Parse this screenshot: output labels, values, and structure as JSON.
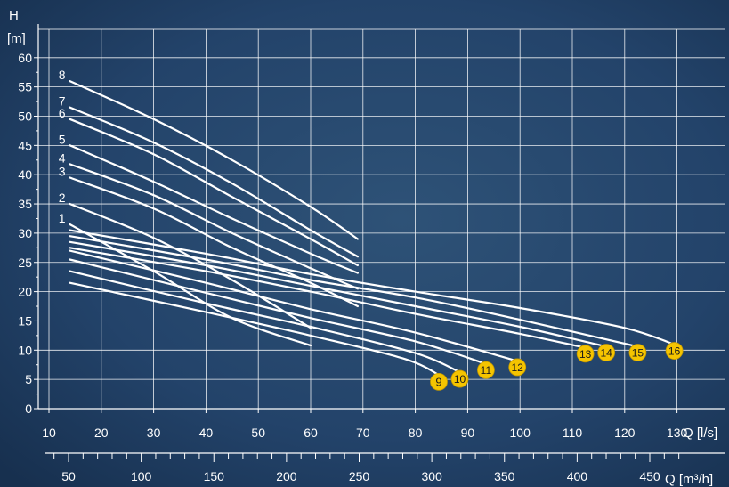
{
  "chart_data": {
    "type": "line",
    "y_axis": {
      "name": "H",
      "unit": "[m]",
      "range": [
        0,
        60
      ],
      "ticks": [
        0,
        5,
        10,
        15,
        20,
        25,
        30,
        35,
        40,
        45,
        50,
        55,
        60
      ]
    },
    "x_axis": {
      "label": "Q [l/s]",
      "range": [
        10,
        140
      ],
      "ticks": [
        10,
        20,
        30,
        40,
        50,
        60,
        70,
        80,
        90,
        100,
        110,
        120,
        130
      ]
    },
    "x2_axis": {
      "label": "Q [m³/h]",
      "ticks": [
        50,
        100,
        150,
        200,
        250,
        300,
        350,
        400,
        450
      ]
    },
    "grid": true,
    "series": [
      {
        "name": "1",
        "label_style": "plain",
        "points": [
          [
            14,
            31.5
          ],
          [
            30,
            23.5
          ],
          [
            45,
            15.5
          ],
          [
            60,
            10.8
          ]
        ]
      },
      {
        "name": "2",
        "label_style": "plain",
        "points": [
          [
            14,
            35
          ],
          [
            30,
            29.2
          ],
          [
            45,
            22
          ],
          [
            60,
            13.8
          ]
        ]
      },
      {
        "name": "3",
        "label_style": "plain",
        "points": [
          [
            14,
            39.5
          ],
          [
            30,
            34.2
          ],
          [
            45,
            27.5
          ],
          [
            60,
            21.5
          ],
          [
            69,
            17.5
          ]
        ]
      },
      {
        "name": "4",
        "label_style": "plain",
        "points": [
          [
            14,
            41.8
          ],
          [
            30,
            36.5
          ],
          [
            45,
            30
          ],
          [
            60,
            24
          ],
          [
            69,
            20.5
          ]
        ]
      },
      {
        "name": "5",
        "label_style": "plain",
        "points": [
          [
            14,
            45
          ],
          [
            30,
            38.8
          ],
          [
            45,
            32.5
          ],
          [
            60,
            26.5
          ],
          [
            69,
            23.2
          ]
        ]
      },
      {
        "name": "6",
        "label_style": "plain",
        "points": [
          [
            14,
            49.5
          ],
          [
            30,
            43.5
          ],
          [
            45,
            36.2
          ],
          [
            60,
            29
          ],
          [
            69,
            24.5
          ]
        ]
      },
      {
        "name": "7",
        "label_style": "plain",
        "points": [
          [
            14,
            51.5
          ],
          [
            30,
            45.5
          ],
          [
            45,
            38.5
          ],
          [
            60,
            30.5
          ],
          [
            69,
            26
          ]
        ]
      },
      {
        "name": "8",
        "label_style": "plain",
        "points": [
          [
            14,
            56
          ],
          [
            30,
            49.5
          ],
          [
            45,
            42.5
          ],
          [
            60,
            34.5
          ],
          [
            69,
            29
          ]
        ]
      },
      {
        "name": "9",
        "label_style": "badge",
        "points": [
          [
            14,
            21.5
          ],
          [
            40,
            16.5
          ],
          [
            60,
            12.5
          ],
          [
            78,
            8.5
          ],
          [
            85,
            5.5
          ]
        ]
      },
      {
        "name": "10",
        "label_style": "badge",
        "points": [
          [
            14,
            23.5
          ],
          [
            40,
            18
          ],
          [
            60,
            14
          ],
          [
            80,
            9.5
          ],
          [
            89,
            6
          ]
        ]
      },
      {
        "name": "11",
        "label_style": "badge",
        "points": [
          [
            14,
            25.5
          ],
          [
            40,
            19.8
          ],
          [
            60,
            15.5
          ],
          [
            80,
            11.5
          ],
          [
            94,
            7.5
          ]
        ]
      },
      {
        "name": "12",
        "label_style": "badge",
        "points": [
          [
            14,
            27
          ],
          [
            40,
            21.5
          ],
          [
            60,
            17
          ],
          [
            80,
            13
          ],
          [
            100,
            8
          ]
        ]
      },
      {
        "name": "13",
        "label_style": "badge",
        "points": [
          [
            14,
            27.5
          ],
          [
            40,
            23.5
          ],
          [
            60,
            20
          ],
          [
            80,
            16.2
          ],
          [
            100,
            12.8
          ],
          [
            113,
            10.3
          ]
        ]
      },
      {
        "name": "14",
        "label_style": "badge",
        "points": [
          [
            14,
            28.5
          ],
          [
            40,
            24.5
          ],
          [
            60,
            21
          ],
          [
            80,
            17.5
          ],
          [
            100,
            14
          ],
          [
            117,
            10.5
          ]
        ]
      },
      {
        "name": "15",
        "label_style": "badge",
        "points": [
          [
            14,
            29.5
          ],
          [
            40,
            25.5
          ],
          [
            60,
            22
          ],
          [
            80,
            19
          ],
          [
            100,
            15.2
          ],
          [
            123,
            10.5
          ]
        ]
      },
      {
        "name": "16",
        "label_style": "badge",
        "points": [
          [
            14,
            30.5
          ],
          [
            40,
            26.5
          ],
          [
            60,
            23
          ],
          [
            80,
            20
          ],
          [
            100,
            17.2
          ],
          [
            120,
            13.8
          ],
          [
            130,
            10.8
          ]
        ]
      }
    ]
  }
}
